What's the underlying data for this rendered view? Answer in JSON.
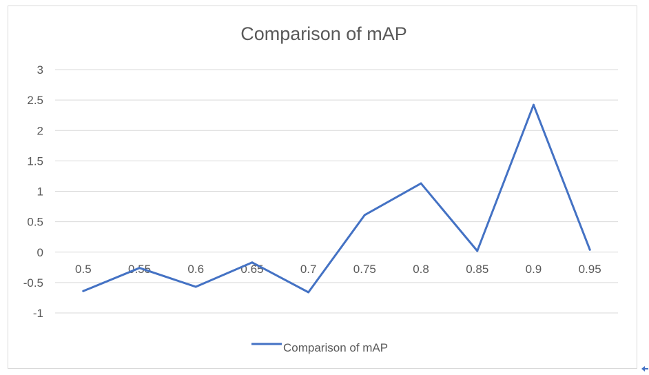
{
  "chart_data": {
    "type": "line",
    "title": "Comparison of mAP",
    "xlabel": "",
    "ylabel": "",
    "categories": [
      "0.5",
      "0.55",
      "0.6",
      "0.65",
      "0.7",
      "0.75",
      "0.8",
      "0.85",
      "0.9",
      "0.95"
    ],
    "series": [
      {
        "name": "Comparison of mAP",
        "values": [
          -0.64,
          -0.26,
          -0.57,
          -0.17,
          -0.66,
          0.61,
          1.13,
          0.02,
          2.42,
          0.04
        ],
        "color": "#4472c4"
      }
    ],
    "ylim": [
      -1,
      3
    ],
    "yticks": [
      "3",
      "2.5",
      "2",
      "1.5",
      "1",
      "0.5",
      "0",
      "-0.5",
      "-1"
    ],
    "grid": true,
    "legend_position": "bottom"
  }
}
